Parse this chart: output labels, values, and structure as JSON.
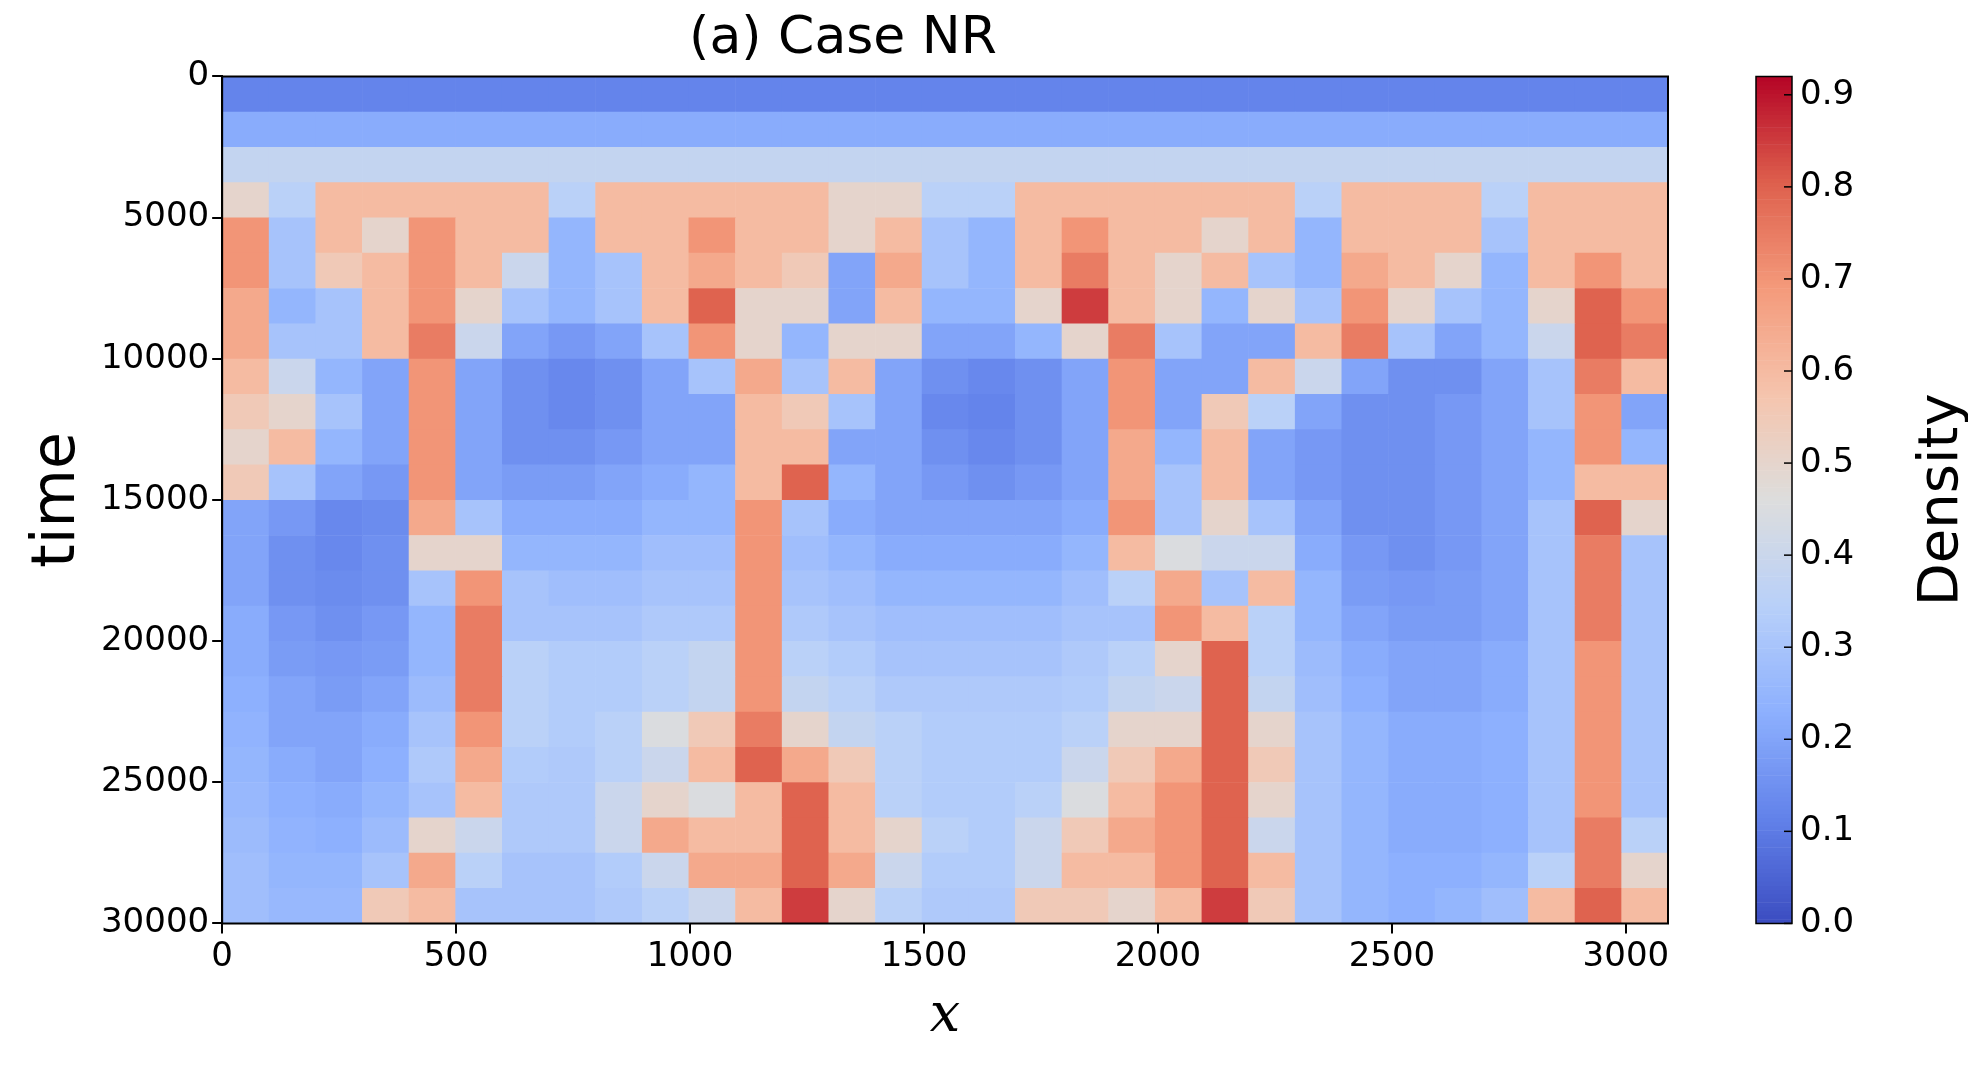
{
  "chart_data": {
    "type": "heatmap",
    "title": "(a) Case NR",
    "xlabel": "x",
    "ylabel": "time",
    "clabel": "Density",
    "xlim": [
      0,
      3090
    ],
    "xticks": [
      0,
      500,
      1000,
      1500,
      2000,
      2500,
      3000
    ],
    "ylim": [
      30000,
      0
    ],
    "yticks": [
      0,
      5000,
      10000,
      15000,
      20000,
      25000,
      30000
    ],
    "clim": [
      0,
      0.92
    ],
    "cticks": [
      {
        "value": 0,
        "label": "0.0"
      },
      0.1,
      0.2,
      0.3,
      0.4,
      0.5,
      0.6,
      0.7,
      0.8,
      0.9
    ],
    "cells": [
      [
        0.12,
        0.12,
        0.12,
        0.12,
        0.12,
        0.12,
        0.12,
        0.12,
        0.12,
        0.12,
        0.12,
        0.12,
        0.12,
        0.12,
        0.12,
        0.12,
        0.12,
        0.12,
        0.12,
        0.12,
        0.12,
        0.12,
        0.12,
        0.12,
        0.12,
        0.12,
        0.12,
        0.12,
        0.12,
        0.12,
        0.12
      ],
      [
        0.22,
        0.22,
        0.22,
        0.22,
        0.22,
        0.22,
        0.22,
        0.22,
        0.22,
        0.22,
        0.22,
        0.22,
        0.22,
        0.22,
        0.22,
        0.22,
        0.22,
        0.22,
        0.22,
        0.22,
        0.22,
        0.22,
        0.22,
        0.22,
        0.22,
        0.22,
        0.22,
        0.22,
        0.22,
        0.22,
        0.22
      ],
      [
        0.38,
        0.38,
        0.38,
        0.38,
        0.38,
        0.38,
        0.38,
        0.38,
        0.38,
        0.38,
        0.38,
        0.38,
        0.38,
        0.38,
        0.38,
        0.38,
        0.38,
        0.38,
        0.38,
        0.38,
        0.38,
        0.38,
        0.38,
        0.38,
        0.38,
        0.38,
        0.38,
        0.38,
        0.38,
        0.38,
        0.38
      ],
      [
        0.5,
        0.35,
        0.6,
        0.6,
        0.6,
        0.6,
        0.6,
        0.35,
        0.6,
        0.6,
        0.6,
        0.6,
        0.6,
        0.5,
        0.5,
        0.35,
        0.35,
        0.6,
        0.6,
        0.6,
        0.6,
        0.6,
        0.6,
        0.35,
        0.6,
        0.6,
        0.6,
        0.35,
        0.6,
        0.6,
        0.6
      ],
      [
        0.7,
        0.3,
        0.6,
        0.5,
        0.7,
        0.6,
        0.6,
        0.25,
        0.6,
        0.6,
        0.7,
        0.6,
        0.6,
        0.5,
        0.6,
        0.3,
        0.25,
        0.6,
        0.7,
        0.6,
        0.6,
        0.5,
        0.6,
        0.25,
        0.6,
        0.6,
        0.6,
        0.3,
        0.6,
        0.6,
        0.6
      ],
      [
        0.7,
        0.3,
        0.55,
        0.6,
        0.7,
        0.6,
        0.4,
        0.25,
        0.3,
        0.6,
        0.65,
        0.6,
        0.55,
        0.2,
        0.65,
        0.3,
        0.25,
        0.6,
        0.75,
        0.6,
        0.5,
        0.6,
        0.3,
        0.25,
        0.65,
        0.6,
        0.5,
        0.25,
        0.6,
        0.7,
        0.6
      ],
      [
        0.65,
        0.25,
        0.3,
        0.6,
        0.7,
        0.5,
        0.3,
        0.25,
        0.3,
        0.6,
        0.8,
        0.5,
        0.5,
        0.2,
        0.6,
        0.25,
        0.25,
        0.5,
        0.85,
        0.6,
        0.5,
        0.25,
        0.5,
        0.3,
        0.7,
        0.5,
        0.3,
        0.25,
        0.5,
        0.8,
        0.7
      ],
      [
        0.65,
        0.3,
        0.3,
        0.6,
        0.75,
        0.4,
        0.2,
        0.17,
        0.2,
        0.3,
        0.7,
        0.5,
        0.25,
        0.5,
        0.5,
        0.2,
        0.2,
        0.25,
        0.5,
        0.75,
        0.3,
        0.2,
        0.2,
        0.6,
        0.75,
        0.3,
        0.2,
        0.25,
        0.4,
        0.8,
        0.75
      ],
      [
        0.6,
        0.4,
        0.25,
        0.2,
        0.7,
        0.2,
        0.15,
        0.13,
        0.15,
        0.2,
        0.3,
        0.65,
        0.3,
        0.6,
        0.2,
        0.15,
        0.13,
        0.15,
        0.2,
        0.7,
        0.2,
        0.2,
        0.6,
        0.4,
        0.2,
        0.15,
        0.15,
        0.2,
        0.3,
        0.75,
        0.6
      ],
      [
        0.55,
        0.5,
        0.3,
        0.2,
        0.7,
        0.2,
        0.15,
        0.13,
        0.15,
        0.2,
        0.2,
        0.6,
        0.55,
        0.3,
        0.2,
        0.13,
        0.12,
        0.15,
        0.2,
        0.7,
        0.2,
        0.55,
        0.35,
        0.2,
        0.15,
        0.15,
        0.17,
        0.2,
        0.3,
        0.7,
        0.2
      ],
      [
        0.5,
        0.6,
        0.25,
        0.2,
        0.7,
        0.2,
        0.15,
        0.15,
        0.17,
        0.2,
        0.2,
        0.6,
        0.6,
        0.2,
        0.2,
        0.15,
        0.13,
        0.15,
        0.2,
        0.65,
        0.25,
        0.6,
        0.2,
        0.17,
        0.15,
        0.15,
        0.17,
        0.2,
        0.25,
        0.7,
        0.25
      ],
      [
        0.55,
        0.3,
        0.2,
        0.17,
        0.7,
        0.2,
        0.18,
        0.18,
        0.2,
        0.22,
        0.25,
        0.6,
        0.8,
        0.25,
        0.2,
        0.17,
        0.15,
        0.17,
        0.2,
        0.65,
        0.3,
        0.6,
        0.2,
        0.17,
        0.15,
        0.15,
        0.17,
        0.2,
        0.25,
        0.6,
        0.6
      ],
      [
        0.2,
        0.17,
        0.13,
        0.14,
        0.65,
        0.3,
        0.22,
        0.22,
        0.22,
        0.25,
        0.25,
        0.7,
        0.3,
        0.22,
        0.2,
        0.2,
        0.2,
        0.2,
        0.22,
        0.7,
        0.3,
        0.5,
        0.3,
        0.2,
        0.15,
        0.15,
        0.17,
        0.2,
        0.3,
        0.8,
        0.5
      ],
      [
        0.2,
        0.15,
        0.13,
        0.15,
        0.5,
        0.5,
        0.25,
        0.25,
        0.25,
        0.28,
        0.28,
        0.7,
        0.28,
        0.25,
        0.22,
        0.22,
        0.22,
        0.22,
        0.25,
        0.6,
        0.45,
        0.4,
        0.4,
        0.22,
        0.17,
        0.15,
        0.17,
        0.2,
        0.3,
        0.75,
        0.3
      ],
      [
        0.2,
        0.15,
        0.14,
        0.15,
        0.3,
        0.7,
        0.3,
        0.28,
        0.28,
        0.3,
        0.3,
        0.7,
        0.3,
        0.28,
        0.25,
        0.25,
        0.25,
        0.25,
        0.28,
        0.35,
        0.65,
        0.3,
        0.6,
        0.25,
        0.18,
        0.17,
        0.18,
        0.2,
        0.3,
        0.75,
        0.3
      ],
      [
        0.22,
        0.17,
        0.15,
        0.17,
        0.25,
        0.75,
        0.3,
        0.3,
        0.3,
        0.32,
        0.32,
        0.7,
        0.32,
        0.3,
        0.28,
        0.28,
        0.28,
        0.28,
        0.3,
        0.3,
        0.7,
        0.6,
        0.35,
        0.25,
        0.2,
        0.18,
        0.18,
        0.2,
        0.3,
        0.75,
        0.3
      ],
      [
        0.22,
        0.18,
        0.17,
        0.18,
        0.25,
        0.75,
        0.35,
        0.33,
        0.33,
        0.35,
        0.38,
        0.7,
        0.35,
        0.33,
        0.3,
        0.3,
        0.3,
        0.3,
        0.32,
        0.35,
        0.5,
        0.8,
        0.35,
        0.27,
        0.22,
        0.2,
        0.2,
        0.22,
        0.3,
        0.7,
        0.3
      ],
      [
        0.23,
        0.2,
        0.18,
        0.2,
        0.27,
        0.75,
        0.35,
        0.33,
        0.33,
        0.35,
        0.38,
        0.7,
        0.38,
        0.35,
        0.32,
        0.32,
        0.32,
        0.32,
        0.33,
        0.38,
        0.4,
        0.8,
        0.38,
        0.28,
        0.23,
        0.2,
        0.2,
        0.22,
        0.3,
        0.7,
        0.3
      ],
      [
        0.24,
        0.2,
        0.2,
        0.22,
        0.3,
        0.7,
        0.35,
        0.33,
        0.35,
        0.45,
        0.55,
        0.75,
        0.5,
        0.38,
        0.35,
        0.33,
        0.33,
        0.33,
        0.35,
        0.5,
        0.5,
        0.8,
        0.5,
        0.3,
        0.25,
        0.22,
        0.22,
        0.23,
        0.3,
        0.7,
        0.3
      ],
      [
        0.25,
        0.22,
        0.2,
        0.23,
        0.32,
        0.65,
        0.33,
        0.32,
        0.35,
        0.4,
        0.6,
        0.8,
        0.65,
        0.55,
        0.35,
        0.33,
        0.33,
        0.33,
        0.4,
        0.55,
        0.65,
        0.8,
        0.55,
        0.3,
        0.25,
        0.22,
        0.22,
        0.23,
        0.3,
        0.7,
        0.3
      ],
      [
        0.26,
        0.23,
        0.22,
        0.25,
        0.3,
        0.6,
        0.32,
        0.32,
        0.4,
        0.5,
        0.45,
        0.6,
        0.8,
        0.6,
        0.35,
        0.33,
        0.33,
        0.35,
        0.45,
        0.6,
        0.7,
        0.8,
        0.5,
        0.3,
        0.25,
        0.22,
        0.22,
        0.23,
        0.3,
        0.7,
        0.3
      ],
      [
        0.27,
        0.24,
        0.23,
        0.27,
        0.5,
        0.4,
        0.32,
        0.32,
        0.4,
        0.65,
        0.6,
        0.6,
        0.8,
        0.6,
        0.5,
        0.35,
        0.33,
        0.4,
        0.55,
        0.65,
        0.7,
        0.8,
        0.4,
        0.3,
        0.25,
        0.22,
        0.22,
        0.23,
        0.3,
        0.75,
        0.35
      ],
      [
        0.28,
        0.25,
        0.25,
        0.3,
        0.65,
        0.35,
        0.3,
        0.3,
        0.33,
        0.4,
        0.65,
        0.65,
        0.8,
        0.65,
        0.4,
        0.33,
        0.33,
        0.4,
        0.6,
        0.6,
        0.7,
        0.8,
        0.6,
        0.3,
        0.25,
        0.23,
        0.23,
        0.25,
        0.35,
        0.75,
        0.5
      ],
      [
        0.28,
        0.26,
        0.26,
        0.55,
        0.6,
        0.3,
        0.3,
        0.3,
        0.32,
        0.35,
        0.4,
        0.6,
        0.85,
        0.5,
        0.35,
        0.32,
        0.32,
        0.55,
        0.55,
        0.5,
        0.6,
        0.85,
        0.55,
        0.3,
        0.25,
        0.23,
        0.25,
        0.28,
        0.6,
        0.8,
        0.6
      ]
    ]
  }
}
